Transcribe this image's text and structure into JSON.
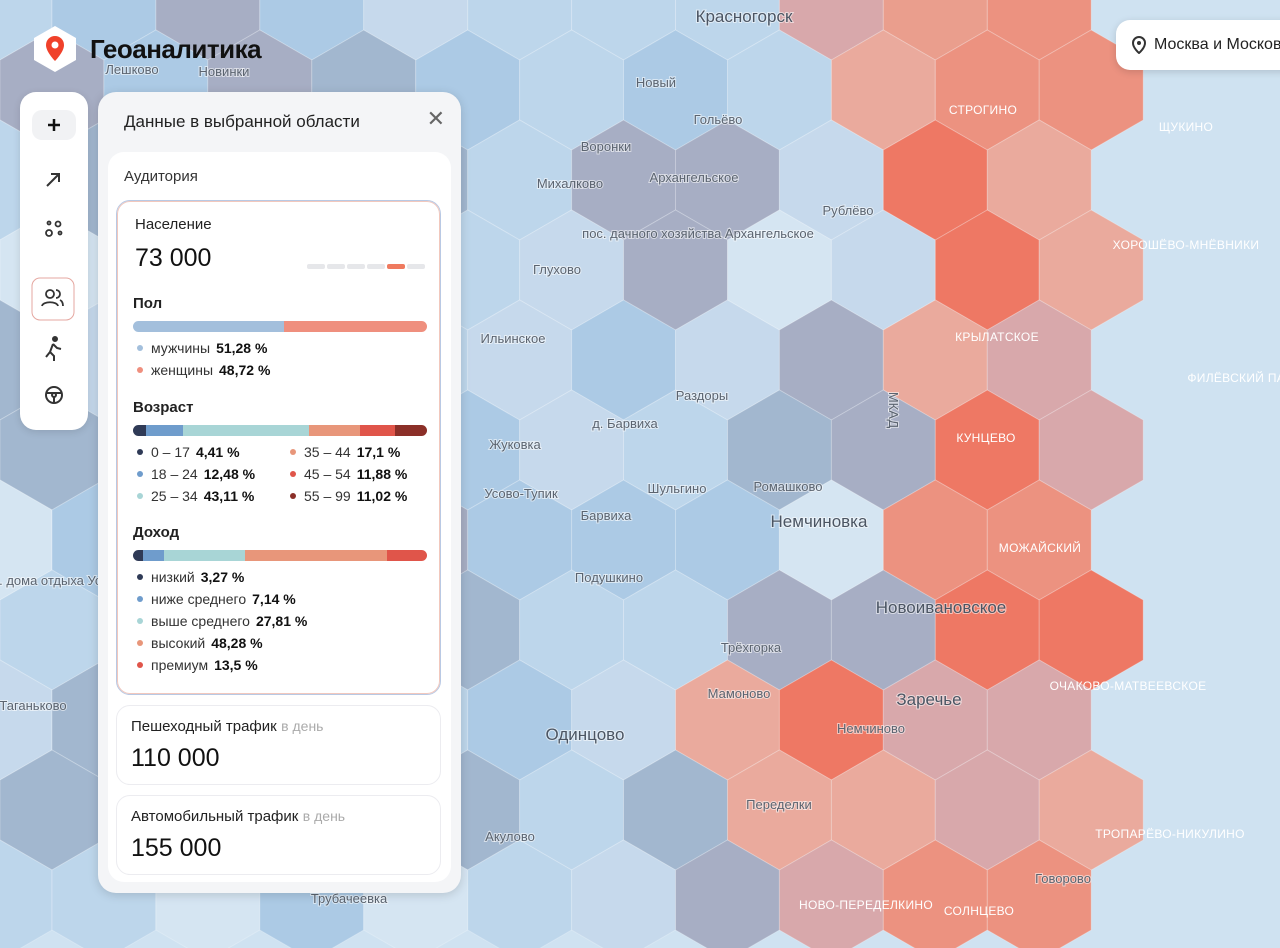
{
  "header": {
    "brand": "Геоаналитика",
    "location": "Москва и Московс"
  },
  "panel": {
    "title": "Данные в выбранной области",
    "section": "Аудитория",
    "population": {
      "label": "Население",
      "value": "73 000"
    },
    "gender": {
      "title": "Пол",
      "items": [
        {
          "name": "мужчины",
          "value": 51.28,
          "value_label": "51,28 %",
          "color": "#a3bfdc"
        },
        {
          "name": "женщины",
          "value": 48.72,
          "value_label": "48,72 %",
          "color": "#ef8f7e"
        }
      ]
    },
    "age": {
      "title": "Возраст",
      "items": [
        {
          "name": "0 – 17",
          "value": 4.41,
          "value_label": "4,41 %",
          "color": "#2f3a56"
        },
        {
          "name": "18 – 24",
          "value": 12.48,
          "value_label": "12,48 %",
          "color": "#6f9ccc"
        },
        {
          "name": "25 – 34",
          "value": 43.11,
          "value_label": "43,11 %",
          "color": "#a8d5d6"
        },
        {
          "name": "35 – 44",
          "value": 17.1,
          "value_label": "17,1 %",
          "color": "#e8967a"
        },
        {
          "name": "45 – 54",
          "value": 11.88,
          "value_label": "11,88 %",
          "color": "#e0554a"
        },
        {
          "name": "55 – 99",
          "value": 11.02,
          "value_label": "11,02 %",
          "color": "#8b2f28"
        }
      ]
    },
    "income": {
      "title": "Доход",
      "items": [
        {
          "name": "низкий",
          "value": 3.27,
          "value_label": "3,27 %",
          "color": "#2f3a56"
        },
        {
          "name": "ниже среднего",
          "value": 7.14,
          "value_label": "7,14 %",
          "color": "#6f9ccc"
        },
        {
          "name": "выше среднего",
          "value": 27.81,
          "value_label": "27,81 %",
          "color": "#a8d5d6"
        },
        {
          "name": "высокий",
          "value": 48.28,
          "value_label": "48,28 %",
          "color": "#e8967a"
        },
        {
          "name": "премиум",
          "value": 13.5,
          "value_label": "13,5 %",
          "color": "#e0554a"
        }
      ]
    },
    "pedestrian": {
      "label": "Пешеходный трафик",
      "unit": "в день",
      "value": "110 000"
    },
    "car": {
      "label": "Автомобильный трафик",
      "unit": "в день",
      "value": "155 000"
    }
  },
  "map": {
    "labels": [
      "Красногорск",
      "Лешково",
      "Новинки",
      "Новый",
      "Гольёво",
      "Воронки",
      "Михалково",
      "Архангельское",
      "Рублёво",
      "пос. дачного хозяйства Архангельское",
      "Глухово",
      "Ильинское",
      "Жуковка",
      "д. Барвиха",
      "Раздоры",
      "Усово-Тупик",
      "Шульгино",
      "Барвиха",
      "Ромашково",
      "Немчиновка",
      "Подушкино",
      "Новоивановское",
      "Трёхгорка",
      "Мамоново",
      "Заречье",
      "Одинцово",
      "Немчиново",
      "Переделки",
      "Акулово",
      "Говорово",
      "Трубачеевка",
      "СТРОГИНО",
      "ЩУКИНО",
      "ХОРОШЁВО-МНЁВНИКИ",
      "КРЫЛАТСКОЕ",
      "ФИЛЁВСКИЙ ПАРК",
      "КУНЦЕВО",
      "МОЖАЙСКИЙ",
      "ОЧАКОВО-МАТВЕЕВСКОЕ",
      "ТРОПАРЁВО-НИКУЛИНО",
      "НОВО-ПЕРЕДЕЛКИНО",
      "СОЛНЦЕВО",
      "МКАД",
      "Таганьково",
      "пос. дома отдыха Успенское"
    ]
  }
}
